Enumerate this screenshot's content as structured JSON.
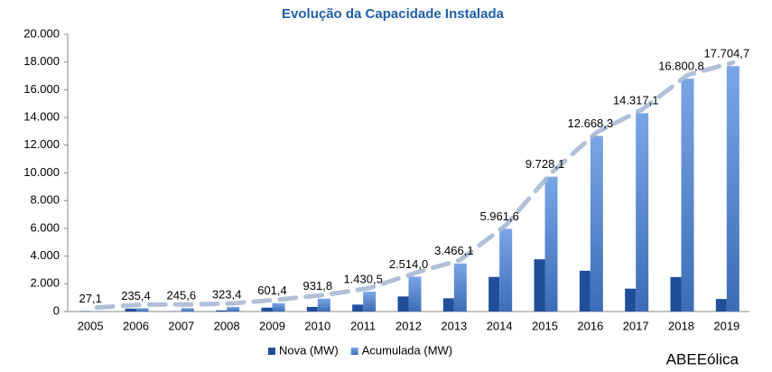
{
  "chart_data": {
    "type": "bar",
    "title": "Evolução da Capacidade Instalada",
    "source": "ABEEólica",
    "categories": [
      "2005",
      "2006",
      "2007",
      "2008",
      "2009",
      "2010",
      "2011",
      "2012",
      "2013",
      "2014",
      "2015",
      "2016",
      "2017",
      "2018",
      "2019"
    ],
    "series": [
      {
        "name": "Nova (MW)",
        "color": "#1f4e9a",
        "values": [
          27,
          208,
          10,
          78,
          278,
          330,
          499,
          1083,
          952,
          2496,
          3767,
          2940,
          1649,
          2484,
          904
        ]
      },
      {
        "name": "Acumulada (MW)",
        "color": "#5b8ed8",
        "values": [
          27.1,
          235.4,
          245.6,
          323.4,
          601.4,
          931.8,
          1430.5,
          2514.0,
          3466.1,
          5961.6,
          9728.1,
          12668.3,
          14317.1,
          16800.8,
          17704.7
        ],
        "value_labels": [
          "27,1",
          "235,4",
          "245,6",
          "323,4",
          "601,4",
          "931,8",
          "1.430,5",
          "2.514,0",
          "3.466,1",
          "5.961,6",
          "9.728,1",
          "12.668,3",
          "14.317,1",
          "16.800,8",
          "17.704,7"
        ]
      }
    ],
    "ylim": [
      0,
      20000
    ],
    "yticks": [
      0,
      {
        "value": 2000,
        "label": "2.000"
      },
      {
        "value": 4000,
        "label": "4.000"
      },
      {
        "value": 6000,
        "label": "6.000"
      },
      {
        "value": 8000,
        "label": "8.000"
      },
      {
        "value": 10000,
        "label": "10.000"
      },
      {
        "value": 12000,
        "label": "12.000"
      },
      {
        "value": 14000,
        "label": "14.000"
      },
      {
        "value": 16000,
        "label": "16.000"
      },
      {
        "value": 18000,
        "label": "18.000"
      },
      {
        "value": 20000,
        "label": "20.000"
      }
    ],
    "legend": "bottom"
  }
}
